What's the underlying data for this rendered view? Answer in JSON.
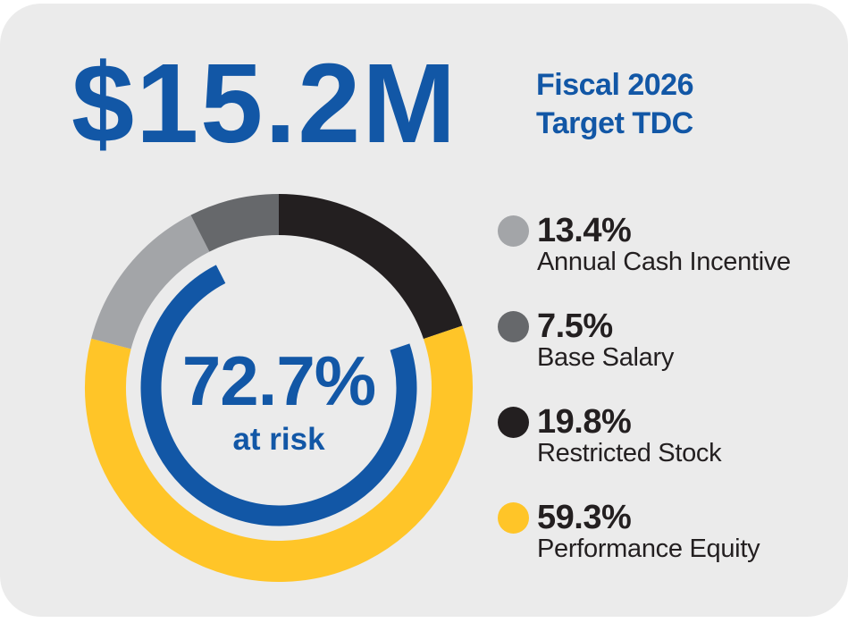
{
  "header": {
    "amount": "$15.2M",
    "subtitle_line1": "Fiscal 2026",
    "subtitle_line2": "Target TDC"
  },
  "chart_data": {
    "type": "donut",
    "title": "Fiscal 2026 Target TDC",
    "total_label": "$15.2M",
    "segments": [
      {
        "label": "Annual Cash Incentive",
        "value": 13.4,
        "color": "#A3A5A8"
      },
      {
        "label": "Base Salary",
        "value": 7.5,
        "color": "#66686B"
      },
      {
        "label": "Restricted Stock",
        "value": 19.8,
        "color": "#231F20"
      },
      {
        "label": "Performance Equity",
        "value": 59.3,
        "color": "#FFC528"
      }
    ],
    "draw_order": [
      "Restricted Stock",
      "Performance Equity",
      "Annual Cash Incentive",
      "Base Salary"
    ],
    "start_angle_deg": 0,
    "direction": "clockwise",
    "legend_position": "right",
    "center_callout": {
      "value": "72.7%",
      "caption": "at risk",
      "arc_color": "#1257A6",
      "arc_start_pct": 19.8,
      "arc_span_pct": 72.7
    }
  },
  "colors": {
    "accent_blue": "#1257A6",
    "card_bg": "#EBEBEB",
    "page_bg": "#FFFFFF",
    "text_dark": "#231F20"
  }
}
